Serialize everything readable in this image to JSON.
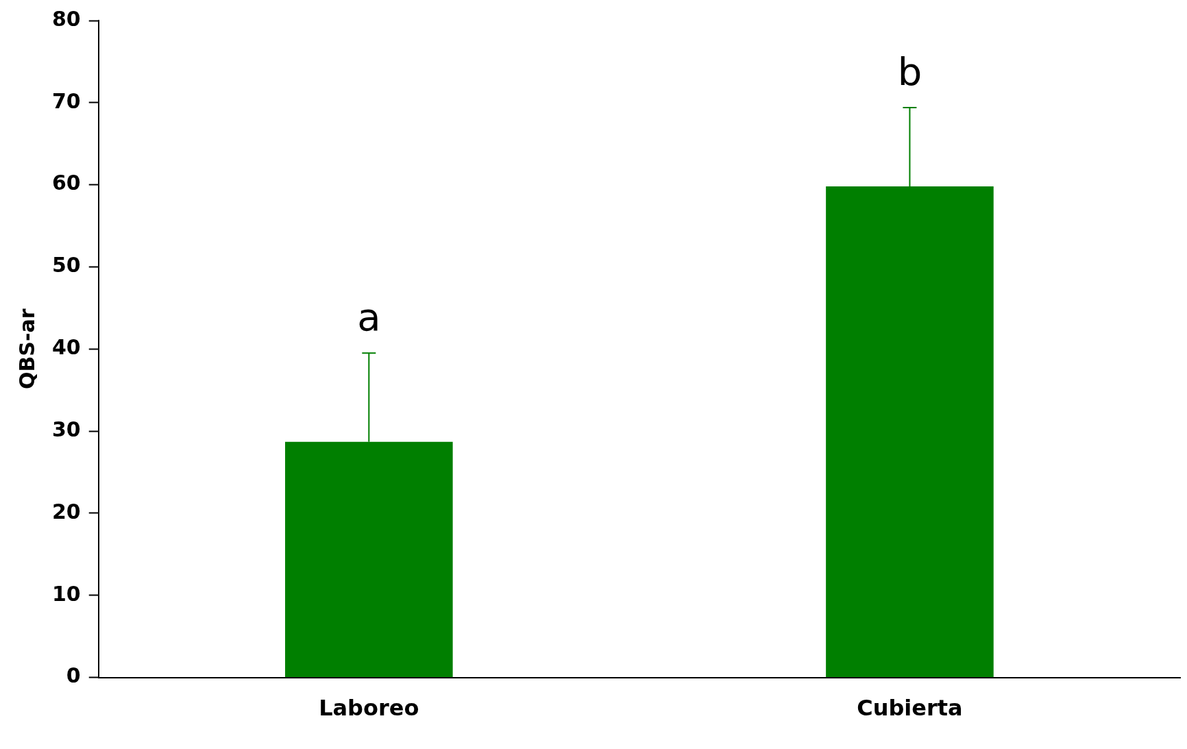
{
  "chart_data": {
    "type": "bar",
    "ylabel": "QBS-ar",
    "categories": [
      "Laboreo",
      "Cubierta"
    ],
    "values": [
      28.7,
      59.8
    ],
    "errors": [
      [
        28.7,
        39.5
      ],
      [
        59.8,
        69.4
      ]
    ],
    "color": "#007f00",
    "ylim": [
      0,
      80
    ],
    "yticks": [
      0,
      10,
      20,
      30,
      40,
      50,
      60,
      70,
      80
    ],
    "grid": false,
    "legend": false,
    "annotations": [
      "a",
      "b"
    ]
  }
}
